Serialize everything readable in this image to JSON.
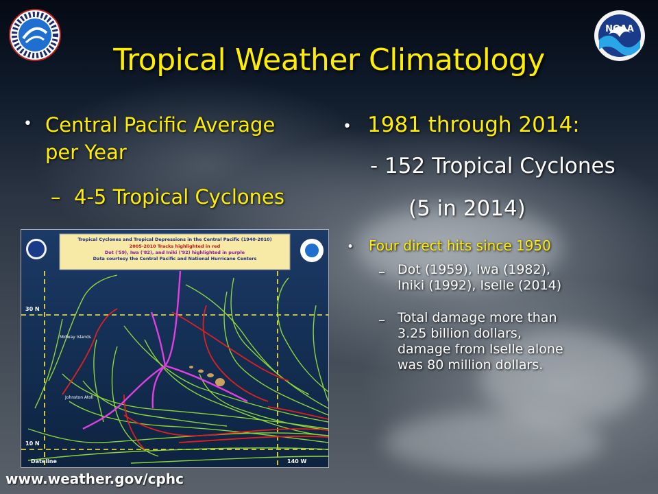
{
  "slide": {
    "title": "Tropical Weather Climatology",
    "left": {
      "bullet1_line1": "Central Pacific Average",
      "bullet1_line2": "per Year",
      "sub1": "4-5 Tropical Cyclones"
    },
    "right": {
      "bullet1": "1981 through 2014:",
      "sub1": "- 152 Tropical Cyclones",
      "sub2": "(5 in 2014)",
      "bullet2": "Four direct hits since 1950",
      "sub3_line1": "Dot (1959), Iwa (1982),",
      "sub3_line2": "Iniki (1992), Iselle (2014)",
      "sub4_line1": "Total damage more than",
      "sub4_line2": "3.25 billion dollars,",
      "sub4_line3": "damage from Iselle alone",
      "sub4_line4": "was 80 million dollars."
    },
    "url": "www.weather.gov/cphc"
  },
  "map": {
    "title": "Tropical Cyclones and Tropical Depressions in the Central Pacific (1940-2010)",
    "line2": "2005-2010 Tracks highlighted in red",
    "line3": "Dot ('59), Iwa ('82), and Iniki ('92) highlighted in purple",
    "line4": "Data courtesy the Central Pacific and National Hurricane Centers",
    "lat_30": "30 N",
    "lat_10": "10 N",
    "lon_dateline": "Dateline",
    "lon_140": "140 W",
    "label_midway": "Midway Islands",
    "label_johnston": "Johnston Atoll"
  },
  "logos": {
    "nws_text": "NATIONAL WEATHER SERVICE",
    "noaa_text": "NOAA"
  },
  "colors": {
    "title": "#ffee00",
    "bullet_text_left": "#ffee00",
    "bullet_text_right_top": "#ffee00",
    "body_text": "#ffffff",
    "track_green": "#9be83a",
    "track_red": "#e0201e",
    "track_purple": "#e040e0"
  }
}
